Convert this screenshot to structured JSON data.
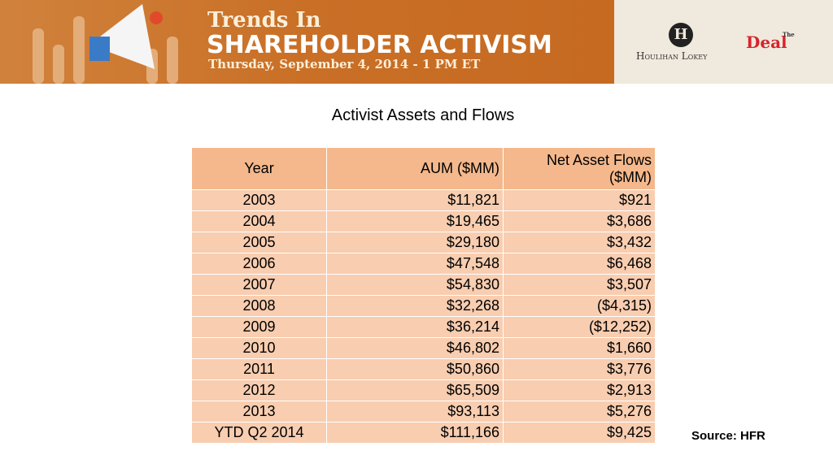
{
  "header": {
    "line1": "Trends In",
    "line2": "SHAREHOLDER ACTIVISM",
    "line3": "Thursday, September 4, 2014 - 1 PM ET",
    "sponsor1_mark": "H",
    "sponsor1": "Houlihan Lokey",
    "sponsor2_small": "The",
    "sponsor2": "Deal"
  },
  "title": "Activist Assets and Flows",
  "table": {
    "columns": [
      "Year",
      "AUM ($MM)",
      "Net Asset Flows ($MM)"
    ],
    "rows": [
      [
        "2003",
        "$11,821",
        "$921"
      ],
      [
        "2004",
        "$19,465",
        "$3,686"
      ],
      [
        "2005",
        "$29,180",
        "$3,432"
      ],
      [
        "2006",
        "$47,548",
        "$6,468"
      ],
      [
        "2007",
        "$54,830",
        "$3,507"
      ],
      [
        "2008",
        "$32,268",
        "($4,315)"
      ],
      [
        "2009",
        "$36,214",
        "($12,252)"
      ],
      [
        "2010",
        "$46,802",
        "$1,660"
      ],
      [
        "2011",
        "$50,860",
        "$3,776"
      ],
      [
        "2012",
        "$65,509",
        "$2,913"
      ],
      [
        "2013",
        "$93,113",
        "$5,276"
      ],
      [
        "YTD Q2 2014",
        "$111,166",
        "$9,425"
      ]
    ]
  },
  "source": "Source: HFR"
}
